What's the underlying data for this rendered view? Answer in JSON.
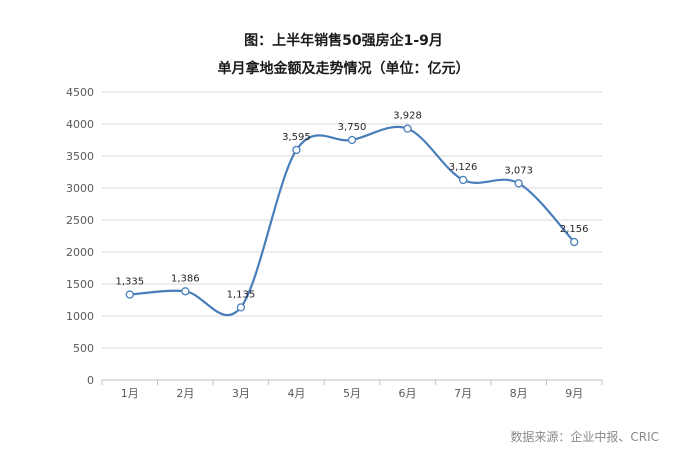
{
  "chart_data": {
    "type": "line",
    "title": "图：上半年销售50强房企1-9月",
    "subtitle": "单月拿地金额及走势情况（单位：亿元）",
    "categories": [
      "1月",
      "2月",
      "3月",
      "4月",
      "5月",
      "6月",
      "7月",
      "8月",
      "9月"
    ],
    "series": [
      {
        "values": [
          1335,
          1386,
          1135,
          3595,
          3750,
          3928,
          3126,
          3073,
          2156
        ],
        "labels": [
          "1,335",
          "1,386",
          "1,135",
          "3,595",
          "3,750",
          "3,928",
          "3,126",
          "3,073",
          "2,156"
        ]
      }
    ],
    "y_ticks": [
      "0",
      "500",
      "1000",
      "1500",
      "2000",
      "2500",
      "3000",
      "3500",
      "4000",
      "4500"
    ],
    "ylim": [
      0,
      4500
    ],
    "grid": true,
    "line_color": "#4a7ebb",
    "grid_color": "#d9d9d9"
  },
  "source": "数据来源：企业中报、CRIC"
}
